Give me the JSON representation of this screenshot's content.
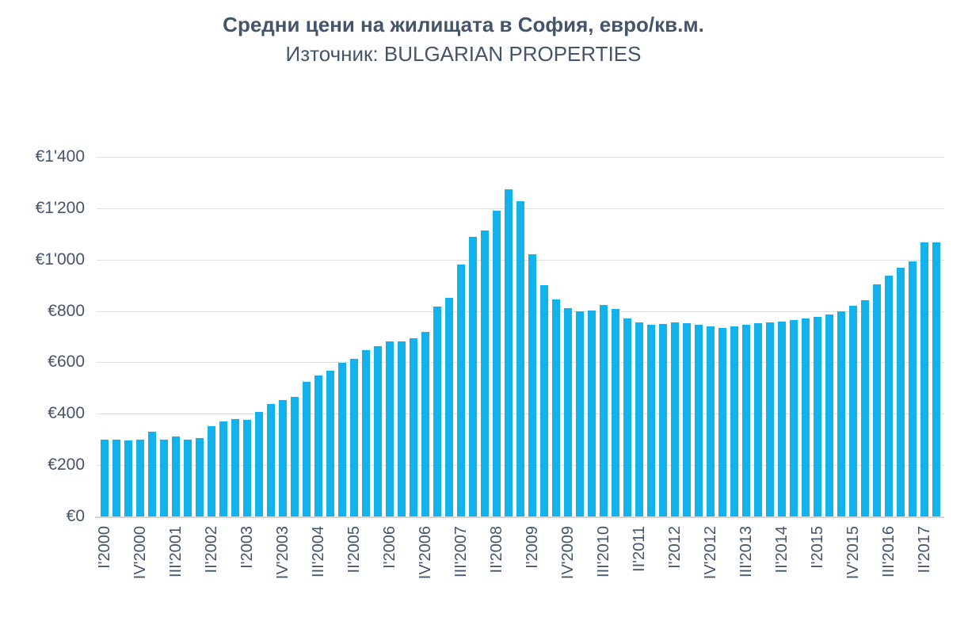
{
  "header": {
    "title": "Средни цени на жилищата в София, евро/кв.м.",
    "subtitle": "Източник: BULGARIAN PROPERTIES"
  },
  "colors": {
    "bar": "#14b2ea",
    "text": "#44546A",
    "gridline": "#dcdfe4",
    "baseline": "#d2d5da"
  },
  "chart_data": {
    "type": "bar",
    "title": "Средни цени на жилищата в София, евро/кв.м.",
    "subtitle": "Източник: BULGARIAN PROPERTIES",
    "source": "BULGARIAN PROPERTIES",
    "unit": "евро/кв.м.",
    "ylim": [
      0,
      1400
    ],
    "y_tick_step": 200,
    "y_tick_labels": [
      "€0",
      "€200",
      "€400",
      "€600",
      "€800",
      "€1'000",
      "€1'200",
      "€1'400"
    ],
    "grid": true,
    "legend": false,
    "x_tick_every": 3,
    "x_tick_labels": [
      "I'2000",
      "IV'2000",
      "III'2001",
      "II'2002",
      "I'2003",
      "IV'2003",
      "III'2004",
      "II'2005",
      "I'2006",
      "IV'2006",
      "III'2007",
      "II'2008",
      "I'2009",
      "IV'2009",
      "III'2010",
      "II'2011",
      "I'2012",
      "IV'2012",
      "III'2013",
      "II'2014",
      "I'2015",
      "IV'2015",
      "III'2016",
      "II'2017"
    ],
    "categories": [
      "I'2000",
      "II'2000",
      "III'2000",
      "IV'2000",
      "I'2001",
      "II'2001",
      "III'2001",
      "IV'2001",
      "I'2002",
      "II'2002",
      "III'2002",
      "IV'2002",
      "I'2003",
      "II'2003",
      "III'2003",
      "IV'2003",
      "I'2004",
      "II'2004",
      "III'2004",
      "IV'2004",
      "I'2005",
      "II'2005",
      "III'2005",
      "IV'2005",
      "I'2006",
      "II'2006",
      "III'2006",
      "IV'2006",
      "I'2007",
      "II'2007",
      "III'2007",
      "IV'2007",
      "I'2008",
      "II'2008",
      "III'2008",
      "IV'2008",
      "I'2009",
      "II'2009",
      "III'2009",
      "IV'2009",
      "I'2010",
      "II'2010",
      "III'2010",
      "IV'2010",
      "I'2011",
      "II'2011",
      "III'2011",
      "IV'2011",
      "I'2012",
      "II'2012",
      "III'2012",
      "IV'2012",
      "I'2013",
      "II'2013",
      "III'2013",
      "IV'2013",
      "I'2014",
      "II'2014",
      "III'2014",
      "IV'2014",
      "I'2015",
      "II'2015",
      "III'2015",
      "IV'2015",
      "I'2016",
      "II'2016",
      "III'2016",
      "IV'2016",
      "I'2017",
      "II'2017",
      "III'2017"
    ],
    "values": [
      300,
      300,
      295,
      300,
      330,
      300,
      310,
      300,
      305,
      350,
      370,
      378,
      377,
      408,
      438,
      454,
      466,
      523,
      550,
      566,
      598,
      615,
      648,
      664,
      680,
      682,
      693,
      718,
      817,
      850,
      980,
      1088,
      1114,
      1190,
      1274,
      1226,
      1021,
      900,
      846,
      812,
      800,
      802,
      822,
      809,
      770,
      754,
      747,
      748,
      756,
      752,
      746,
      741,
      735,
      740,
      747,
      752,
      755,
      758,
      765,
      772,
      777,
      786,
      800,
      820,
      843,
      905,
      937,
      969,
      994,
      1066,
      1066
    ]
  }
}
